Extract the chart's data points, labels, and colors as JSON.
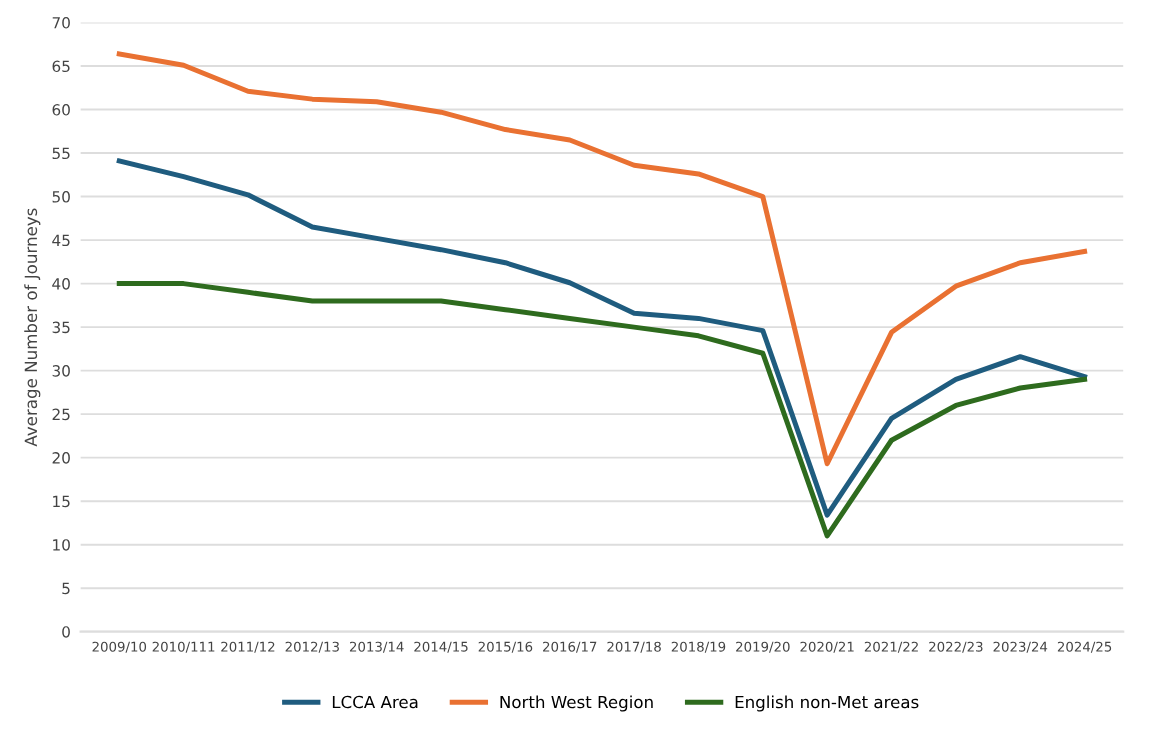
{
  "chart_data": {
    "type": "line",
    "ylabel": "Average Number of Journeys",
    "categories": [
      "2009/10",
      "2010/111",
      "2011/12",
      "2012/13",
      "2013/14",
      "2014/15",
      "2015/16",
      "2016/17",
      "2017/18",
      "2018/19",
      "2019/20",
      "2020/21",
      "2021/22",
      "2022/23",
      "2023/24",
      "2024/25"
    ],
    "series": [
      {
        "name": "LCCA Area",
        "color": "#1f5c7f",
        "values": [
          54.1,
          52.3,
          50.2,
          46.5,
          45.2,
          43.9,
          42.4,
          40.1,
          36.6,
          36.0,
          34.6,
          13.4,
          24.5,
          29.0,
          31.6,
          29.3
        ]
      },
      {
        "name": "North West Region",
        "color": "#e97132",
        "values": [
          66.4,
          65.1,
          62.1,
          61.2,
          60.9,
          59.7,
          57.7,
          56.5,
          53.6,
          52.6,
          50.0,
          19.3,
          34.4,
          39.7,
          42.4,
          43.7
        ]
      },
      {
        "name": "English non-Met areas",
        "color": "#2e6b1e",
        "values": [
          40,
          40,
          39,
          38,
          38,
          38,
          37,
          36,
          35,
          34,
          32,
          11,
          22,
          26,
          28,
          29
        ]
      }
    ],
    "ylim": [
      0,
      70
    ],
    "yticks": [
      0,
      5,
      10,
      15,
      20,
      25,
      30,
      35,
      40,
      45,
      50,
      55,
      60,
      65,
      70
    ],
    "grid": "y",
    "legend": "bottom"
  }
}
